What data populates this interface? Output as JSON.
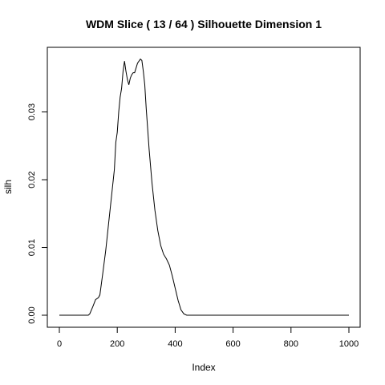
{
  "chart_data": {
    "type": "line",
    "title": "WDM Slice ( 13 / 64 )  Silhouette Dimension 1",
    "xlabel": "Index",
    "ylabel": "silh",
    "xlim": [
      0,
      1000
    ],
    "ylim": [
      0,
      0.038
    ],
    "x_ticks": [
      0,
      200,
      400,
      600,
      800,
      1000
    ],
    "y_ticks": [
      0.0,
      0.01,
      0.02,
      0.03
    ],
    "x_tick_labels": [
      "0",
      "200",
      "400",
      "600",
      "800",
      "1000"
    ],
    "y_tick_labels": [
      "0.00",
      "0.01",
      "0.02",
      "0.03"
    ],
    "grid": false,
    "series": [
      {
        "color": "#000000",
        "x": [
          0,
          100,
          105,
          115,
          125,
          135,
          140,
          150,
          160,
          170,
          180,
          190,
          195,
          200,
          205,
          210,
          215,
          220,
          225,
          230,
          235,
          240,
          245,
          250,
          255,
          260,
          265,
          270,
          275,
          280,
          285,
          290,
          295,
          300,
          305,
          310,
          320,
          330,
          340,
          350,
          360,
          370,
          380,
          390,
          400,
          410,
          420,
          430,
          440,
          460,
          500,
          600,
          700,
          800,
          900,
          1000
        ],
        "y": [
          0,
          0,
          0.0002,
          0.0012,
          0.0023,
          0.0026,
          0.003,
          0.0062,
          0.0095,
          0.0135,
          0.0175,
          0.0215,
          0.0255,
          0.027,
          0.03,
          0.0322,
          0.0335,
          0.036,
          0.0375,
          0.036,
          0.0348,
          0.034,
          0.035,
          0.0355,
          0.0358,
          0.0358,
          0.0365,
          0.0372,
          0.0375,
          0.0378,
          0.0376,
          0.036,
          0.034,
          0.0305,
          0.0275,
          0.0245,
          0.0195,
          0.0155,
          0.0125,
          0.0103,
          0.009,
          0.0083,
          0.0074,
          0.0058,
          0.004,
          0.0022,
          0.0008,
          0.0002,
          0,
          0,
          0,
          0,
          0,
          0,
          0,
          0
        ]
      }
    ]
  }
}
